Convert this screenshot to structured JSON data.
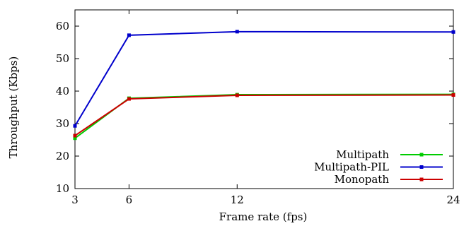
{
  "chart_data": {
    "type": "line",
    "xlabel": "Frame rate (fps)",
    "ylabel": "Throughput (Kbps)",
    "x": [
      3,
      6,
      12,
      24
    ],
    "x_ticks": [
      "3",
      "6",
      "12",
      "24"
    ],
    "y_ticks": [
      "10",
      "20",
      "30",
      "40",
      "50",
      "60"
    ],
    "xlim": [
      3,
      24
    ],
    "ylim": [
      10,
      65
    ],
    "grid": false,
    "legend_position": "bottom-right",
    "series": [
      {
        "name": "Multipath",
        "color": "#00cc00",
        "values": [
          25.5,
          37.8,
          38.9,
          39.0
        ]
      },
      {
        "name": "Multipath-PIL",
        "color": "#0000cc",
        "values": [
          29.3,
          57.2,
          58.3,
          58.2
        ]
      },
      {
        "name": "Monopath",
        "color": "#cc0000",
        "values": [
          26.3,
          37.6,
          38.7,
          38.8
        ]
      }
    ]
  }
}
